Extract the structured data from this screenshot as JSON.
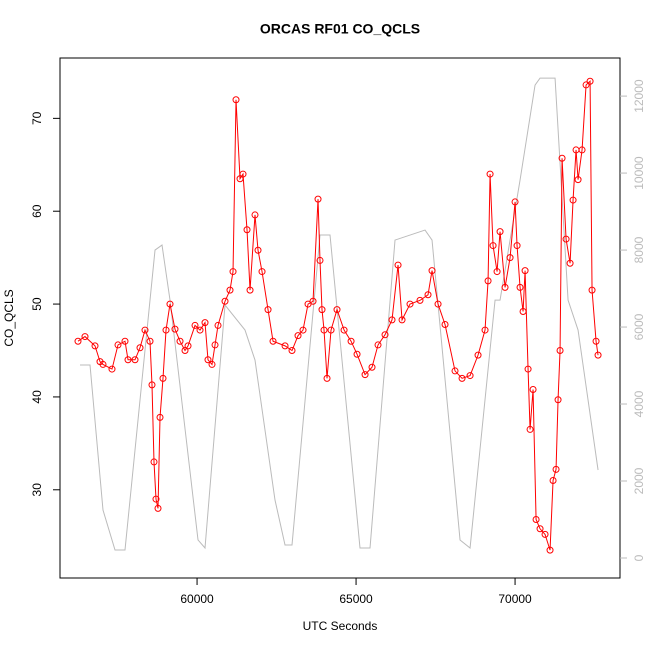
{
  "chart_data": {
    "type": "line",
    "title": "ORCAS RF01 CO_QCLS",
    "xlabel": "UTC Seconds",
    "ylabel": "CO_QCLS",
    "xlim": [
      55690,
      73300
    ],
    "ylim": [
      20.5,
      76.5
    ],
    "y2lim": [
      -520,
      12990
    ],
    "xticks": [
      60000,
      65000,
      70000
    ],
    "yticks": [
      30,
      40,
      50,
      60,
      70
    ],
    "y2ticks": [
      0,
      2000,
      4000,
      6000,
      8000,
      10000,
      12000
    ],
    "series": [
      {
        "color": "#bbbbbb",
        "axis": "y2",
        "x": [
          56319,
          56634,
          57042,
          57420,
          57734,
          58678,
          58898,
          59149,
          60030,
          60250,
          60879,
          61508,
          61822,
          62451,
          62766,
          62986,
          63866,
          64181,
          65124,
          65439,
          66225,
          67169,
          67389,
          68270,
          68585,
          69371,
          69528,
          70157,
          70629,
          70786,
          71258,
          71667,
          71981,
          72610
        ],
        "values": [
          5013,
          5013,
          1247,
          208,
          208,
          8000,
          8130,
          6700,
          468,
          260,
          6571,
          5922,
          5143,
          1506,
          338,
          338,
          8390,
          8390,
          260,
          260,
          8260,
          8520,
          8260,
          468,
          260,
          6700,
          6700,
          9818,
          12286,
          12468,
          12468,
          6700,
          5922,
          2286
        ]
      },
      {
        "color": "#ff0000",
        "marker": "circle",
        "x": [
          56256,
          56476,
          56791,
          56948,
          57042,
          57325,
          57514,
          57734,
          57829,
          58049,
          58206,
          58363,
          58520,
          58583,
          58646,
          58709,
          58772,
          58835,
          58929,
          59024,
          59149,
          59306,
          59464,
          59621,
          59716,
          59936,
          60093,
          60250,
          60344,
          60470,
          60565,
          60659,
          60879,
          61036,
          61131,
          61225,
          61351,
          61445,
          61571,
          61666,
          61822,
          61917,
          62043,
          62232,
          62389,
          62767,
          62986,
          63175,
          63332,
          63490,
          63647,
          63804,
          63866,
          63929,
          63993,
          64087,
          64213,
          64401,
          64623,
          64843,
          65031,
          65283,
          65502,
          65691,
          65911,
          66131,
          66320,
          66446,
          66697,
          67011,
          67263,
          67389,
          67578,
          67798,
          68112,
          68333,
          68585,
          68836,
          69056,
          69151,
          69214,
          69308,
          69434,
          69528,
          69685,
          69843,
          70000,
          70063,
          70157,
          70252,
          70315,
          70409,
          70472,
          70566,
          70661,
          70786,
          70943,
          71100,
          71195,
          71289,
          71352,
          71415,
          71478,
          71604,
          71730,
          71824,
          71918,
          71981,
          72107,
          72233,
          72359,
          72421,
          72547,
          72610
        ],
        "values": [
          46,
          46.5,
          45.5,
          43.8,
          43.5,
          43,
          45.6,
          46,
          44,
          44,
          45.3,
          47.2,
          46,
          41.3,
          33,
          29,
          28,
          37.8,
          42,
          47.2,
          50,
          47.3,
          46,
          45,
          45.5,
          47.7,
          47.2,
          48,
          44,
          43.5,
          45.6,
          47.7,
          50.3,
          51.5,
          53.5,
          72,
          63.5,
          64,
          58,
          51.5,
          59.6,
          55.8,
          53.5,
          49.4,
          46,
          45.5,
          45,
          46.6,
          47.2,
          50,
          50.3,
          61.3,
          54.7,
          49.4,
          47.2,
          42,
          47.2,
          49.4,
          47.2,
          46,
          44.6,
          42.4,
          43.2,
          45.6,
          46.7,
          48.3,
          54.2,
          48.3,
          50,
          50.4,
          51,
          53.6,
          50,
          47.8,
          42.8,
          42,
          42.3,
          44.5,
          47.2,
          52.5,
          64,
          56.3,
          53.5,
          57.8,
          51.8,
          55,
          61,
          56.3,
          51.8,
          49.2,
          53.6,
          43,
          36.5,
          40.8,
          26.8,
          25.8,
          25.2,
          23.5,
          31,
          32.2,
          39.7,
          45,
          65.7,
          57,
          54.4,
          61.2,
          66.6,
          63.4,
          66.6,
          73.6,
          74,
          51.5,
          46,
          44.5
        ]
      }
    ]
  }
}
